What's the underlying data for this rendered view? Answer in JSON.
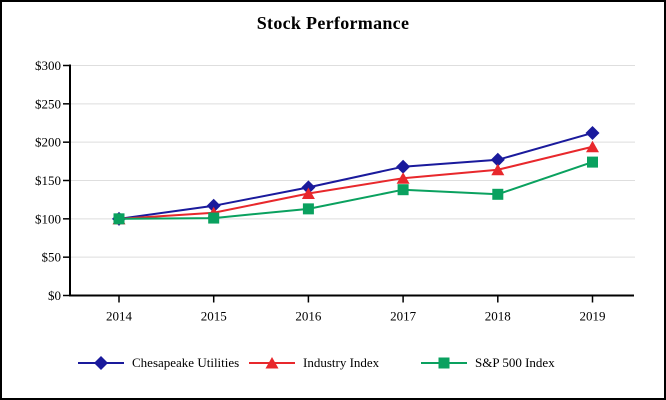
{
  "panel": {
    "background": "#ffffff",
    "border_color": "#000000"
  },
  "chart_data": {
    "type": "line",
    "title": "Stock Performance",
    "categories": [
      "2014",
      "2015",
      "2016",
      "2017",
      "2018",
      "2019"
    ],
    "series": [
      {
        "name": "Chesapeake Utilities",
        "marker": "diamond",
        "color": "#1a1a9c",
        "values": [
          100,
          117,
          141,
          168,
          177,
          212
        ]
      },
      {
        "name": "Industry Index",
        "marker": "triangle",
        "color": "#e8282c",
        "values": [
          100,
          108,
          133,
          153,
          164,
          194
        ]
      },
      {
        "name": "S&P 500 Index",
        "marker": "square",
        "color": "#0aa15f",
        "values": [
          100,
          101,
          113,
          138,
          132,
          174
        ]
      }
    ],
    "xlabel": "",
    "ylabel": "",
    "ylim": [
      0,
      300
    ],
    "ytick_interval": 50,
    "ytick_labels": [
      "$0",
      "$50",
      "$100",
      "$150",
      "$200",
      "$250",
      "$300"
    ],
    "grid": "horizontal",
    "gridline_color": "#dedede",
    "axis_color": "#000000",
    "legend_position": "bottom"
  }
}
